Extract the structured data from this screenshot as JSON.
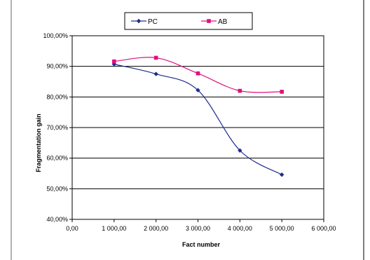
{
  "chart_data": {
    "type": "line",
    "xlabel": "Fact number",
    "ylabel": "Fragmentation gain",
    "xlim": [
      0,
      6000
    ],
    "ylim": [
      40,
      100
    ],
    "x_ticks": [
      "0,00",
      "1 000,00",
      "2 000,00",
      "3 000,00",
      "4 000,00",
      "5 000,00",
      "6 000,00"
    ],
    "y_ticks": [
      "40,00%",
      "50,00%",
      "60,00%",
      "70,00%",
      "80,00%",
      "90,00%",
      "100,00%"
    ],
    "grid": "horizontal",
    "legend_position": "top",
    "series": [
      {
        "name": "PC",
        "color": "#1f2d8c",
        "marker": "diamond",
        "x": [
          1000,
          2000,
          3000,
          4000,
          5000
        ],
        "y": [
          90.7,
          87.5,
          82.2,
          62.5,
          54.6
        ]
      },
      {
        "name": "AB",
        "color": "#e0107f",
        "marker": "square",
        "x": [
          1000,
          2000,
          3000,
          4000,
          5000
        ],
        "y": [
          91.6,
          92.8,
          87.7,
          82.0,
          81.7
        ]
      }
    ]
  }
}
